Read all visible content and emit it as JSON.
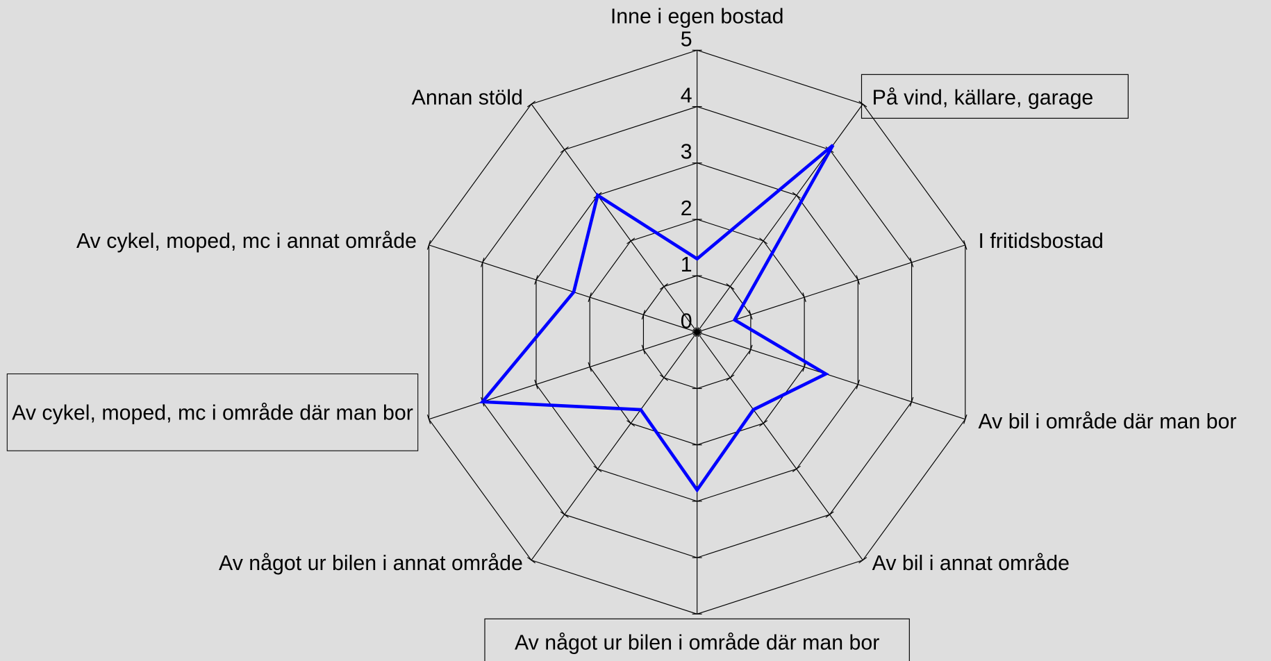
{
  "chart_data": {
    "type": "radar",
    "categories": [
      "Inne i egen bostad",
      "På vind, källare, garage",
      "I fritidsbostad",
      "Av bil i område där man bor",
      "Av bil i annat område",
      "Av något ur bilen i område där man bor",
      "Av något ur bilen i annat område",
      "Av cykel, moped, mc i område där man bor",
      "Av cykel, moped, mc i annat område",
      "Annan stöld"
    ],
    "values": [
      1.3,
      4.1,
      0.7,
      2.4,
      1.7,
      2.8,
      1.7,
      4.0,
      2.3,
      3.0
    ],
    "color": "#0000ff",
    "ylim": [
      0,
      5
    ],
    "yticks": [
      0,
      1,
      2,
      3,
      4,
      5
    ],
    "grid": true
  }
}
